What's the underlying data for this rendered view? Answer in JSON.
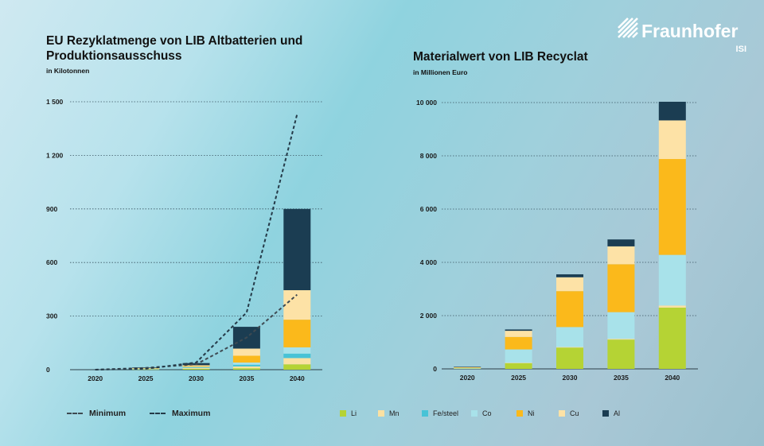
{
  "brand": {
    "name": "Fraunhofer",
    "unit": "ISI"
  },
  "chart_data": [
    {
      "type": "bar",
      "title": "EU Rezyklatmenge von LIB Altbatterien und Produktionsausschuss",
      "subtitle": "in Kilotonnen",
      "categories": [
        "2020",
        "2025",
        "2030",
        "2035",
        "2040"
      ],
      "ylim": [
        0,
        1500
      ],
      "yticks": [
        0,
        300,
        600,
        900,
        1200,
        1500
      ],
      "ytick_labels": [
        "0",
        "300",
        "600",
        "900",
        "1 200",
        "1 500"
      ],
      "stacked": true,
      "grid": true,
      "series": [
        {
          "name": "Li",
          "color": "#b5d334",
          "values": [
            0,
            2,
            5,
            8,
            30
          ]
        },
        {
          "name": "Mn",
          "color": "#fbe1a2",
          "values": [
            0,
            2,
            5,
            10,
            35
          ]
        },
        {
          "name": "Fe/steel",
          "color": "#48c3d6",
          "values": [
            0,
            1,
            3,
            10,
            25
          ]
        },
        {
          "name": "Co",
          "color": "#a8e2ea",
          "values": [
            0,
            1,
            3,
            12,
            35
          ]
        },
        {
          "name": "Ni",
          "color": "#fbb91b",
          "values": [
            0,
            2,
            4,
            38,
            155
          ]
        },
        {
          "name": "Cu",
          "color": "#fde2a6",
          "values": [
            0,
            2,
            5,
            40,
            165
          ]
        },
        {
          "name": "Al",
          "color": "#1b3d52",
          "values": [
            0,
            3,
            12,
            122,
            455
          ]
        }
      ],
      "lines": [
        {
          "name": "Minimum",
          "color": "#3e4a52",
          "x": [
            "2020",
            "2025",
            "2030",
            "2035",
            "2040"
          ],
          "values": [
            0,
            10,
            30,
            180,
            420
          ]
        },
        {
          "name": "Maximum",
          "color": "#243a48",
          "x": [
            "2020",
            "2025",
            "2030",
            "2035",
            "2040"
          ],
          "values": [
            0,
            5,
            40,
            320,
            1430
          ]
        }
      ]
    },
    {
      "type": "bar",
      "title": "Materialwert von LIB Recyclat",
      "subtitle": "in Millionen Euro",
      "categories": [
        "2020",
        "2025",
        "2030",
        "2035",
        "2040"
      ],
      "ylim": [
        0,
        10000
      ],
      "yticks": [
        0,
        2000,
        4000,
        6000,
        8000,
        10000
      ],
      "ytick_labels": [
        "0",
        "2 000",
        "4 000",
        "6 000",
        "8 000",
        "10 000"
      ],
      "stacked": true,
      "grid": true,
      "series": [
        {
          "name": "Li",
          "color": "#b5d334",
          "values": [
            20,
            220,
            800,
            1100,
            2300
          ]
        },
        {
          "name": "Mn",
          "color": "#fbe1a2",
          "values": [
            0,
            10,
            20,
            30,
            80
          ]
        },
        {
          "name": "Fe/steel",
          "color": "#48c3d6",
          "values": [
            0,
            0,
            0,
            0,
            0
          ]
        },
        {
          "name": "Co",
          "color": "#a8e2ea",
          "values": [
            10,
            500,
            750,
            1000,
            1900
          ]
        },
        {
          "name": "Ni",
          "color": "#fbb91b",
          "values": [
            20,
            470,
            1350,
            1800,
            3600
          ]
        },
        {
          "name": "Cu",
          "color": "#fde2a6",
          "values": [
            20,
            230,
            520,
            670,
            1450
          ]
        },
        {
          "name": "Al",
          "color": "#1b3d52",
          "values": [
            10,
            50,
            110,
            260,
            700
          ]
        }
      ]
    }
  ],
  "legend": {
    "lines": [
      "Minimum",
      "Maximum"
    ],
    "items": [
      "Li",
      "Mn",
      "Fe/steel",
      "Co",
      "Ni",
      "Cu",
      "Al"
    ]
  }
}
